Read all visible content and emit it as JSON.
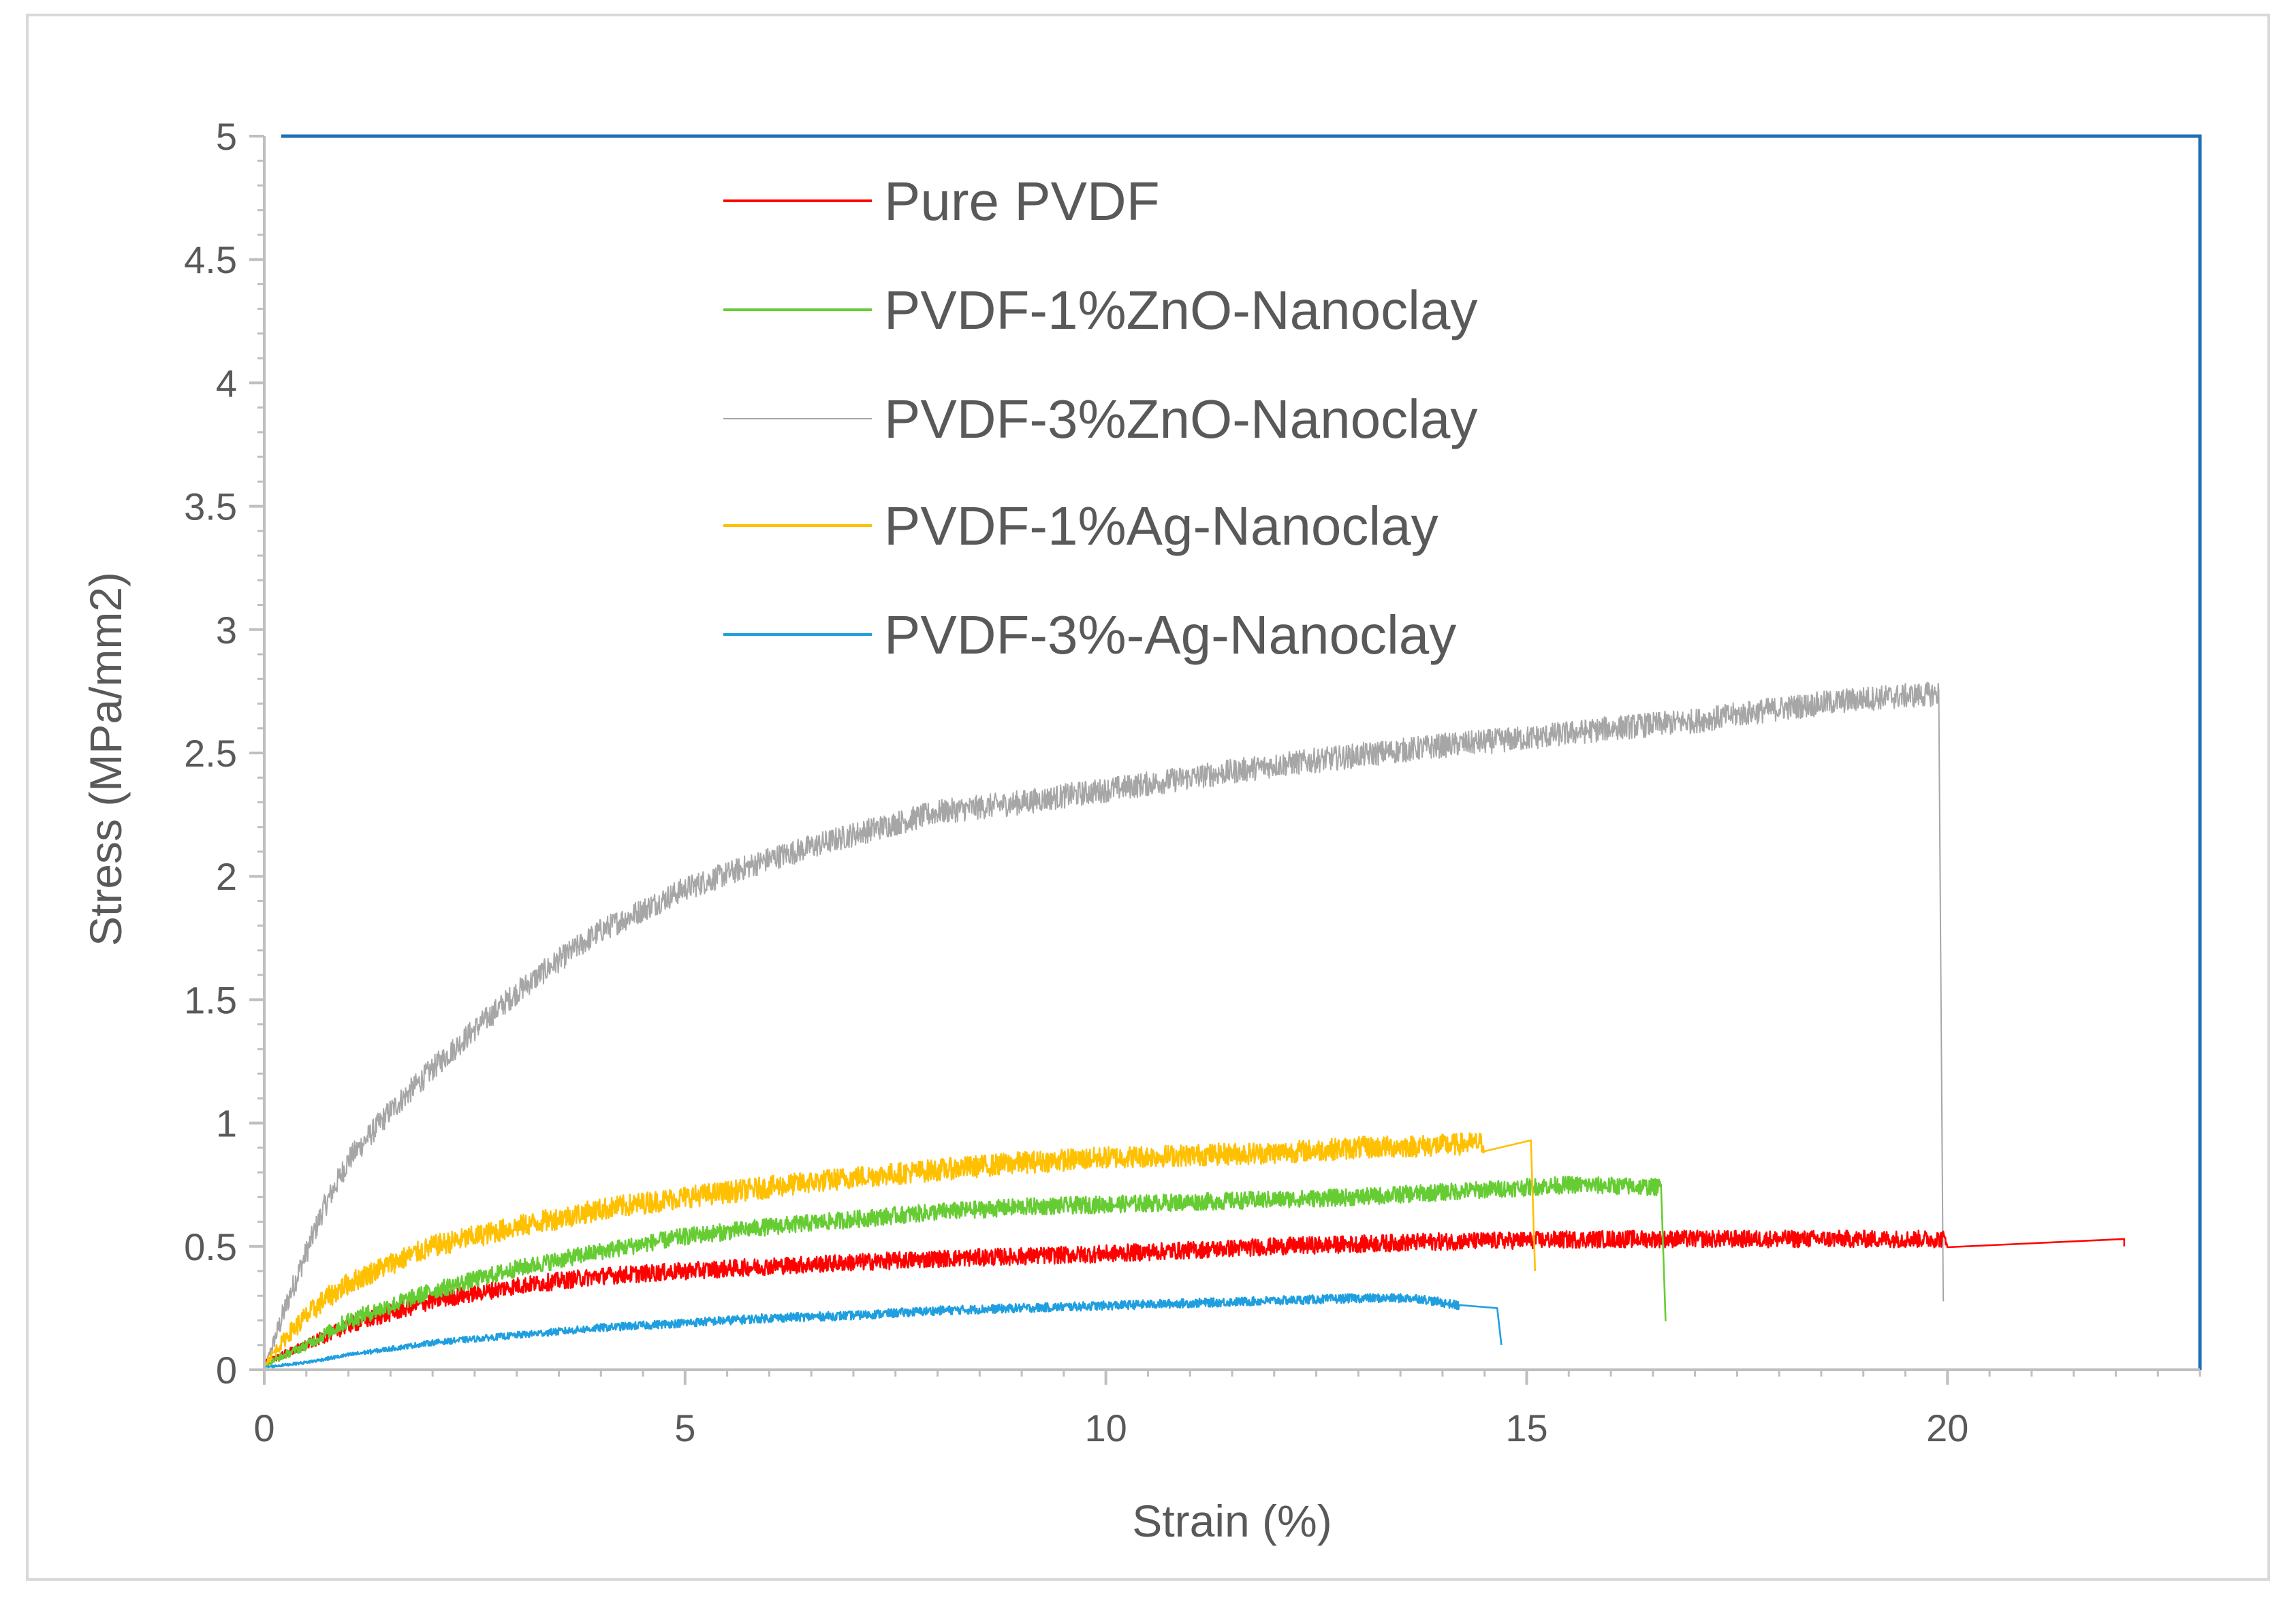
{
  "chart_data": {
    "type": "line",
    "title": "",
    "xlabel": "Strain (%)",
    "ylabel": "Stress (MPa/mm2)",
    "xlim": [
      0,
      23
    ],
    "ylim": [
      0,
      5
    ],
    "xticks": [
      0,
      5,
      10,
      15,
      20
    ],
    "xtick_labels": [
      "0",
      "5",
      "10",
      "15",
      "20"
    ],
    "yticks": [
      0,
      0.5,
      1,
      1.5,
      2,
      2.5,
      3,
      3.5,
      4,
      4.5,
      5
    ],
    "ytick_labels": [
      "0",
      "0.5",
      "1",
      "1.5",
      "2",
      "2.5",
      "3",
      "3.5",
      "4",
      "4.5",
      "5"
    ],
    "grid": false,
    "legend_position": "top-center",
    "series": [
      {
        "name": "Pure PVDF",
        "color": "#ff0000",
        "noise": 0.035,
        "x": [
          0,
          0.5,
          1,
          2,
          3,
          4,
          5,
          6,
          8,
          10,
          12,
          14,
          16,
          18,
          20,
          22.1,
          22.1
        ],
        "y": [
          0.03,
          0.1,
          0.18,
          0.28,
          0.34,
          0.38,
          0.4,
          0.42,
          0.45,
          0.47,
          0.5,
          0.52,
          0.53,
          0.53,
          0.53,
          0.53,
          0.5
        ]
      },
      {
        "name": "PVDF-1%ZnO-Nanoclay",
        "color": "#66cc33",
        "noise": 0.035,
        "x": [
          0,
          0.5,
          1,
          2,
          3,
          4,
          5,
          6,
          7,
          8,
          9,
          10,
          11,
          12,
          13,
          14,
          15,
          15.5,
          16.6,
          16.65,
          16.66
        ],
        "y": [
          0.02,
          0.1,
          0.2,
          0.32,
          0.41,
          0.48,
          0.54,
          0.58,
          0.61,
          0.64,
          0.66,
          0.67,
          0.68,
          0.69,
          0.7,
          0.72,
          0.74,
          0.75,
          0.74,
          0.2,
          0.2
        ]
      },
      {
        "name": "PVDF-3%ZnO-Nanoclay",
        "color": "#a6a6a6",
        "noise": 0.05,
        "x": [
          0,
          0.3,
          0.7,
          1,
          1.5,
          2,
          2.5,
          3,
          3.5,
          4,
          5,
          6,
          7,
          8,
          9,
          10,
          11,
          12,
          13,
          14,
          15,
          16,
          17,
          18,
          19,
          19.9,
          19.95,
          19.96
        ],
        "y": [
          0,
          0.3,
          0.65,
          0.85,
          1.05,
          1.22,
          1.38,
          1.53,
          1.66,
          1.78,
          1.95,
          2.07,
          2.17,
          2.26,
          2.3,
          2.35,
          2.4,
          2.45,
          2.49,
          2.53,
          2.56,
          2.6,
          2.63,
          2.68,
          2.72,
          2.74,
          0.28,
          0.28
        ]
      },
      {
        "name": "PVDF-1%Ag-Nanoclay",
        "color": "#ffc000",
        "noise": 0.045,
        "x": [
          0,
          0.3,
          0.7,
          1,
          1.5,
          2,
          2.5,
          3,
          4,
          5,
          6,
          7,
          8,
          9,
          10,
          11,
          12,
          13,
          14,
          14.5,
          15.05,
          15.1
        ],
        "y": [
          0.02,
          0.15,
          0.28,
          0.35,
          0.43,
          0.5,
          0.54,
          0.58,
          0.65,
          0.7,
          0.74,
          0.78,
          0.81,
          0.84,
          0.86,
          0.87,
          0.88,
          0.9,
          0.91,
          0.92,
          0.93,
          0.4
        ]
      },
      {
        "name": "PVDF-3%-Ag-Nanoclay",
        "color": "#1f9fdf",
        "noise": 0.018,
        "x": [
          0,
          0.5,
          1,
          2,
          3,
          4,
          5,
          6,
          7,
          8,
          9,
          10,
          11,
          12,
          13,
          13.7,
          14.2,
          14.65,
          14.7
        ],
        "y": [
          0.01,
          0.03,
          0.06,
          0.11,
          0.14,
          0.17,
          0.19,
          0.21,
          0.22,
          0.24,
          0.25,
          0.26,
          0.27,
          0.28,
          0.29,
          0.29,
          0.26,
          0.25,
          0.1
        ]
      }
    ]
  }
}
